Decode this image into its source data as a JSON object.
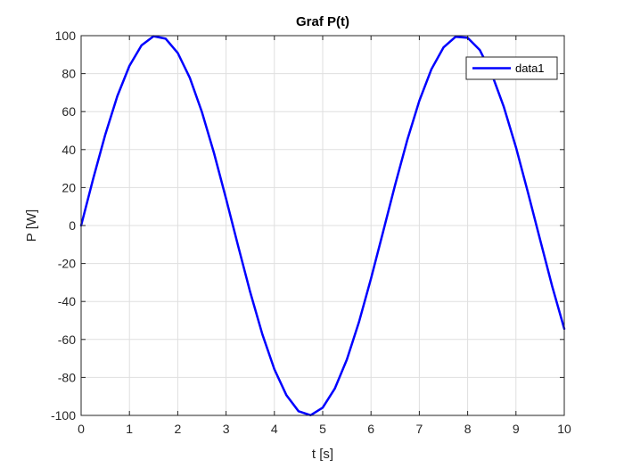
{
  "chart_data": {
    "type": "line",
    "title": "Graf P(t)",
    "xlabel": "t [s]",
    "ylabel": "P [W]",
    "xlim": [
      0,
      10
    ],
    "ylim": [
      -100,
      100
    ],
    "xticks": [
      0,
      1,
      2,
      3,
      4,
      5,
      6,
      7,
      8,
      9,
      10
    ],
    "yticks": [
      -100,
      -80,
      -60,
      -40,
      -20,
      0,
      20,
      40,
      60,
      80,
      100
    ],
    "grid": true,
    "legend": "top-right",
    "series": [
      {
        "name": "data1",
        "color": "#0000ff",
        "x": [
          0,
          0.25,
          0.5,
          0.75,
          1,
          1.25,
          1.5,
          1.75,
          2,
          2.25,
          2.5,
          2.75,
          3,
          3.25,
          3.5,
          3.75,
          4,
          4.25,
          4.5,
          4.75,
          5,
          5.25,
          5.5,
          5.75,
          6,
          6.25,
          6.5,
          6.75,
          7,
          7.25,
          7.5,
          7.75,
          8,
          8.25,
          8.5,
          8.75,
          9,
          9.25,
          9.5,
          9.75,
          10
        ],
        "y": [
          0,
          24.7,
          47.9,
          68.2,
          84.1,
          94.9,
          99.7,
          98.4,
          90.9,
          77.8,
          59.8,
          38.2,
          14.1,
          -10.8,
          -35.1,
          -57.2,
          -75.7,
          -89.4,
          -97.8,
          -99.9,
          -95.9,
          -85.9,
          -70.6,
          -50.9,
          -27.9,
          -3.3,
          21.5,
          45.0,
          65.7,
          82.3,
          93.8,
          99.4,
          98.9,
          92.5,
          79.8,
          62.4,
          41.2,
          17.2,
          -7.5,
          -32.0,
          -54.4
        ]
      }
    ]
  }
}
